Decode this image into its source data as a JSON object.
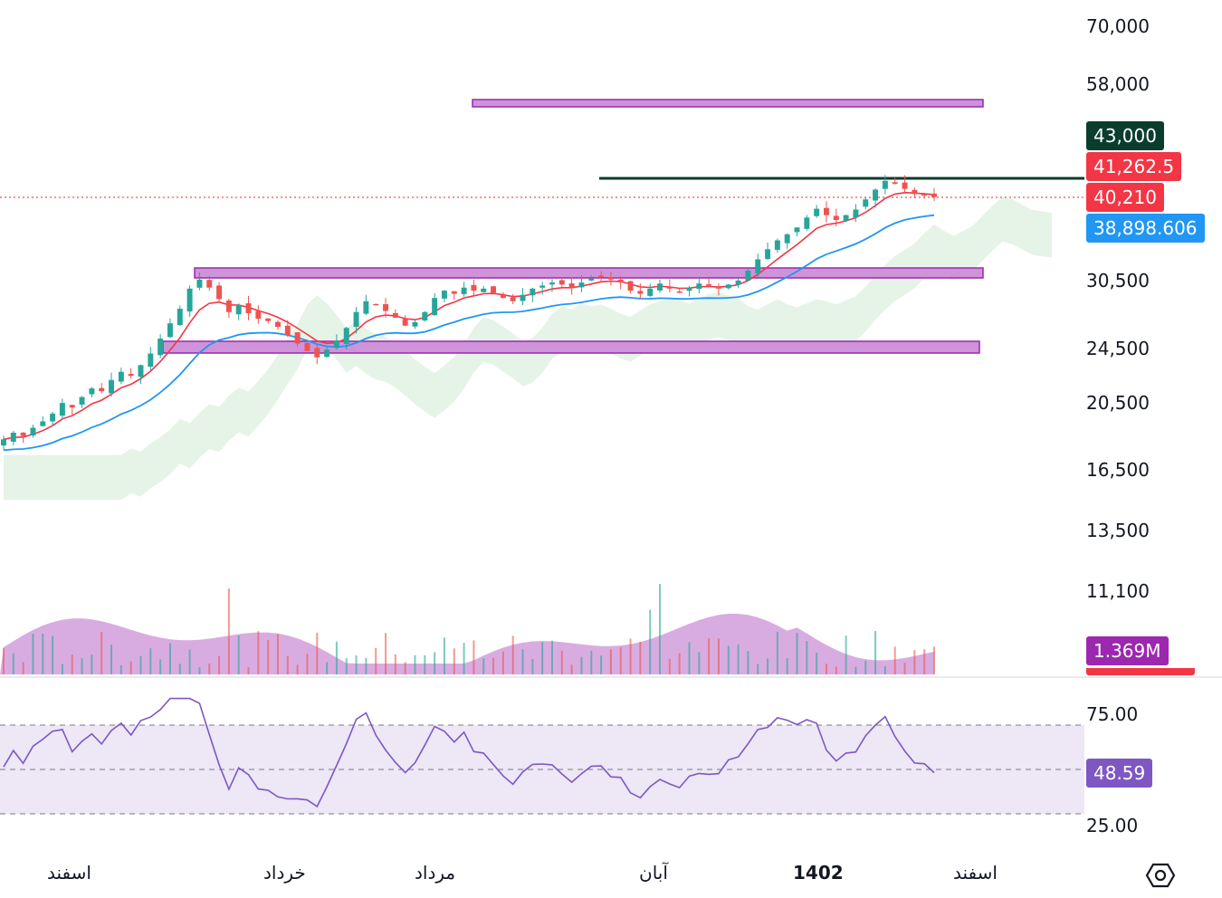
{
  "price_axis": {
    "labels": [
      "70,000",
      "58,000",
      "30,500",
      "24,500",
      "20,500",
      "16,500",
      "13,500",
      "11,100"
    ]
  },
  "rsi_axis": {
    "labels": [
      "75.00",
      "25.00"
    ]
  },
  "tags": {
    "resistance": "43,000",
    "ma_red": "41,262.5",
    "last_price": "40,210",
    "ma_blue": "38,898.606",
    "volume": "1.369M",
    "rsi": "48.59"
  },
  "time_axis": {
    "labels": [
      "اسفند",
      "خرداد",
      "مرداد",
      "آبان",
      "1402",
      "اسفند"
    ]
  },
  "colors": {
    "up": "#26a69a",
    "down": "#ef5350",
    "ma_red": "#f23645",
    "ma_blue": "#2196f3",
    "zone_fill": "#ce93d8",
    "zone_border": "#9c27b0",
    "resistance": "#0b3d2e",
    "rsi_line": "#7e57c2",
    "rsi_band": "#ede7f6",
    "cloud": "#c8e6c9"
  },
  "chart_data": {
    "type": "candlestick",
    "price_scale": "log",
    "close_series": [
      18200,
      18600,
      18400,
      18900,
      19300,
      19800,
      20500,
      20200,
      20900,
      21500,
      21300,
      22100,
      22700,
      22400,
      23200,
      24100,
      25300,
      26600,
      27900,
      29800,
      30700,
      29900,
      28800,
      27600,
      28200,
      27500,
      27000,
      26800,
      26300,
      25600,
      24900,
      24300,
      23800,
      24400,
      25100,
      26200,
      27600,
      28600,
      28300,
      27700,
      27100,
      26400,
      26700,
      27600,
      28900,
      29600,
      29300,
      29900,
      29600,
      29800,
      29400,
      28900,
      28600,
      29200,
      29800,
      30100,
      30400,
      30200,
      29900,
      30400,
      30800,
      31000,
      30700,
      30400,
      29600,
      29300,
      29800,
      30300,
      29800,
      29500,
      29900,
      30300,
      30100,
      29800,
      30200,
      30600,
      31600,
      32800,
      33900,
      34900,
      35600,
      36400,
      37600,
      38700,
      37900,
      37300,
      37900,
      38600,
      39900,
      41200,
      42400,
      42000,
      41300,
      40600,
      40400,
      40210
    ]
  }
}
